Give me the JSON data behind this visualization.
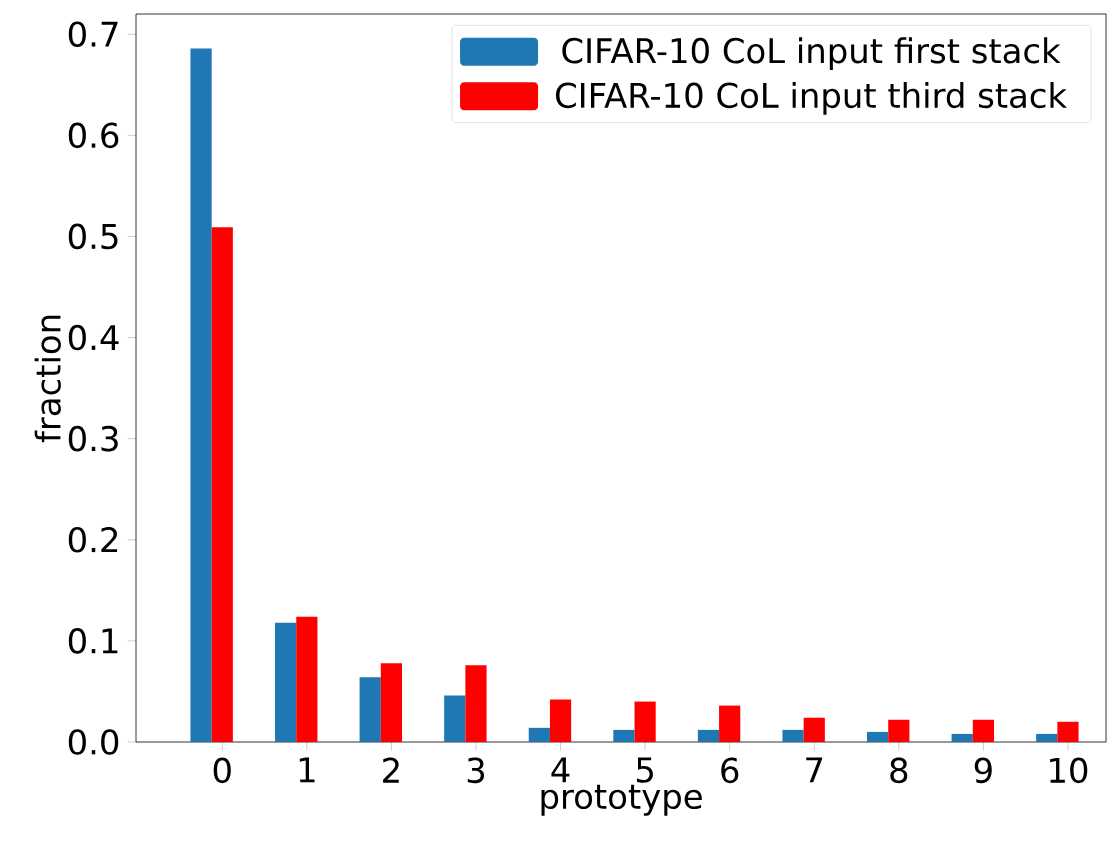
{
  "chart_data": {
    "type": "bar",
    "xlabel": "prototype",
    "ylabel": "fraction",
    "categories": [
      "0",
      "1",
      "2",
      "3",
      "4",
      "5",
      "6",
      "7",
      "8",
      "9",
      "10"
    ],
    "series": [
      {
        "name": "CIFAR-10 CoL input first stack",
        "color": "#1f77b4",
        "values": [
          0.686,
          0.118,
          0.064,
          0.046,
          0.014,
          0.012,
          0.012,
          0.012,
          0.01,
          0.008,
          0.008
        ]
      },
      {
        "name": "CIFAR-10 CoL input third stack",
        "color": "#ff0000",
        "values": [
          0.509,
          0.124,
          0.078,
          0.076,
          0.042,
          0.04,
          0.036,
          0.024,
          0.022,
          0.022,
          0.02
        ]
      }
    ],
    "ylim": [
      0,
      0.72
    ],
    "yticks": [
      {
        "value": 0,
        "label": "0.0"
      },
      {
        "value": 0.1,
        "label": "0.1"
      },
      {
        "value": 0.2,
        "label": "0.2"
      },
      {
        "value": 0.3,
        "label": "0.3"
      },
      {
        "value": 0.4,
        "label": "0.4"
      },
      {
        "value": 0.5,
        "label": "0.5"
      },
      {
        "value": 0.6,
        "label": "0.6"
      },
      {
        "value": 0.7,
        "label": "0.7"
      }
    ],
    "grid": false,
    "legend": "top right"
  }
}
